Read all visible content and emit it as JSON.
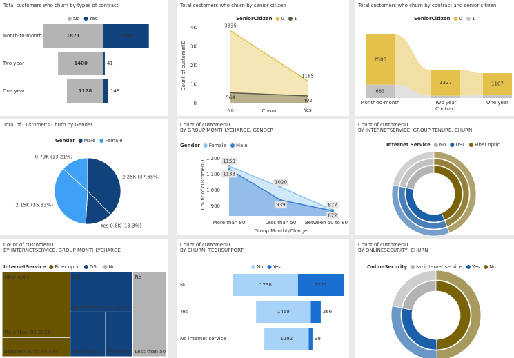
{
  "chart_data": [
    {
      "type": "diverging-bar",
      "title": "Total customers who churn by types of contract",
      "categories": [
        "Month-to-month",
        "Two year",
        "One year"
      ],
      "series": [
        {
          "name": "No",
          "color": "#b4b4b4",
          "values": [
            1871,
            1400,
            1128
          ]
        },
        {
          "name": "Yes",
          "color": "#12427b",
          "values": [
            1398,
            41,
            148
          ]
        }
      ]
    },
    {
      "type": "area",
      "title": "Total customers who churn by senior citizen",
      "legend_title": "SeniorCitizen",
      "categories": [
        "No",
        "Yes"
      ],
      "series": [
        {
          "name": "0",
          "color": "#e3c14a",
          "values": [
            3835,
            1185
          ]
        },
        {
          "name": "1",
          "color": "#5f5d4a",
          "values": [
            564,
            402
          ]
        }
      ],
      "xlabel": "Churn",
      "ylabel": "Count of customerID",
      "ylim": [
        0,
        4000
      ],
      "yticks": [
        0,
        {
          "value": 1000,
          "label": "1K"
        },
        {
          "value": 2000,
          "label": "2K"
        },
        {
          "value": 3000,
          "label": "3K"
        },
        {
          "value": 4000,
          "label": "4K"
        }
      ],
      "markers": false,
      "label_box": false
    },
    {
      "type": "ribbon",
      "title": "Total customers who churn by contract and senior citizen",
      "legend_title": "SeniorCitizen",
      "categories": [
        "Month-to-month",
        "Two year",
        "One year"
      ],
      "xlabel": "Contract",
      "series": [
        {
          "name": "0",
          "color": "#e3c14a",
          "values": [
            2586,
            1327,
            1107
          ]
        },
        {
          "name": "1",
          "color": "#c4c4c4",
          "values": [
            683,
            114,
            169
          ]
        }
      ]
    },
    {
      "type": "pie",
      "title": "Total of Customer's Churn by Gender",
      "legend_title": "Gender",
      "series": [
        {
          "name": "Male",
          "color": "#12427b",
          "values": [
            37.65,
            13.3
          ],
          "value_labels": [
            "2.25K (37.65%)",
            "Yes 0.8K (13.3%)"
          ]
        },
        {
          "name": "Female",
          "color": "#3fa0f5",
          "values": [
            35.83,
            13.21
          ],
          "value_labels": [
            "2.15K (35.83%)",
            "0.79K (13.21%)"
          ]
        }
      ]
    },
    {
      "type": "area",
      "title": "Count of customerID",
      "subtitle": "BY GROUP MONTHLYCHARGE, GENDER",
      "legend_title": "Gender",
      "categories": [
        "More than 80",
        "Less than 50",
        "Between 50 to 80"
      ],
      "series": [
        {
          "name": "Female",
          "color": "#8cc3f2",
          "values": [
            1153,
            1020,
            877
          ]
        },
        {
          "name": "Male",
          "color": "#3d7fd1",
          "values": [
            1133,
            939,
            872
          ]
        }
      ],
      "xlabel": "Group MonthlyCharge",
      "ylabel": "Count of customerID",
      "ylim": [
        840,
        1230
      ],
      "yticks": [
        900,
        {
          "value": 1000,
          "label": "1,000"
        },
        {
          "value": 1100,
          "label": "1,100"
        },
        {
          "value": 1200,
          "label": "1,200"
        }
      ],
      "markers": true,
      "label_box": true
    },
    {
      "type": "sunburst",
      "title": "Count of customerID",
      "subtitle": "BY INTERNETSERVICE, GROUP TENURE, CHURN",
      "legend_title": "Internet Service",
      "categories": [
        "No",
        "DSL",
        "Fiber optic"
      ],
      "colors": [
        "#b3b3b3",
        "#1a5fa8",
        "#7a6209"
      ],
      "values": [
        1526,
        2421,
        3096
      ]
    },
    {
      "type": "treemap",
      "title": "Count of customerID",
      "subtitle": "BY INTERNETSERVICE, GROUP MONTHLYCHARGE",
      "legend_title": "InternetService",
      "groups": [
        {
          "name": "Fiber optic",
          "color": "#6b5400",
          "leaves": [
            {
              "label": "More than 80",
              "value": 2034
            },
            {
              "label": "Between 50 to 80",
              "value": 593
            }
          ]
        },
        {
          "name": "DSL",
          "color": "#12427b",
          "leaves": [
            {
              "label": "Between 50 to ...",
              "value": 1150
            },
            {
              "label": "Less than 5...",
              "value": 720
            },
            {
              "label": "More than ...",
              "value": 550
            }
          ]
        },
        {
          "name": "No",
          "color": "#b3b3b3",
          "leaves": [
            {
              "label": "Less than 50",
              "value": 1291
            }
          ]
        }
      ]
    },
    {
      "type": "funnel",
      "title": "Count of customerID",
      "subtitle": "BY CHURN, TECHSUPPORT",
      "categories": [
        "No",
        "Yes",
        "No internet service"
      ],
      "series": [
        {
          "name": "No",
          "color": "#a8d3f8",
          "values": [
            1738,
            1469,
            1192
          ]
        },
        {
          "name": "Yes",
          "color": "#1a6fd1",
          "values": [
            1222,
            266,
            99
          ]
        }
      ]
    },
    {
      "type": "sunburst",
      "title": "Count of customerID",
      "subtitle": "BY ONLINESECURITY, CHURN",
      "legend_title": "OnlineSecurity",
      "categories": [
        "No internet service",
        "Yes",
        "No"
      ],
      "colors": [
        "#b3b3b3",
        "#1a5fa8",
        "#7a6209"
      ],
      "values": [
        1526,
        2019,
        3498
      ]
    }
  ]
}
